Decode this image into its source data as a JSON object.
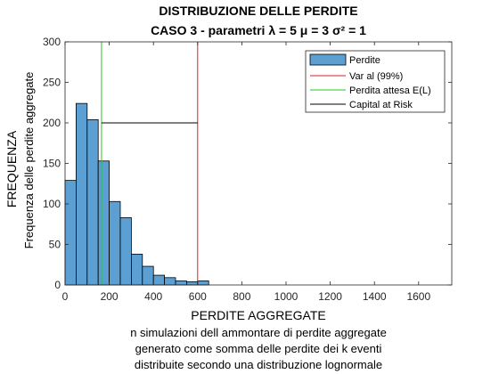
{
  "chart_data": {
    "type": "bar",
    "title_line1": "DISTRIBUZIONE DELLE PERDITE",
    "title_line2": "CASO 3 - parametri λ = 5 μ = 3 σ² = 1",
    "ylabel_main": "FREQUENZA",
    "ylabel_sub": "Frequenza delle perdite aggregate",
    "xlabel_main": "PERDITE AGGREGATE",
    "xlabel_sub": [
      "n simulazioni dell ammontare di perdite aggregate",
      "generato come somma delle perdite dei k eventi",
      "distribuite secondo una distribuzione lognormale"
    ],
    "xlim": [
      0,
      1750
    ],
    "ylim": [
      0,
      300
    ],
    "xticks": [
      "0",
      "200",
      "400",
      "600",
      "800",
      "1000",
      "1200",
      "1400",
      "1600"
    ],
    "yticks": [
      "0",
      "50",
      "100",
      "150",
      "200",
      "250",
      "300"
    ],
    "grid": false,
    "legend_position": "top-right",
    "histogram": {
      "name": "Perdite",
      "color": "#5b9fd3",
      "bin_edges": [
        0,
        50,
        100,
        150,
        200,
        250,
        300,
        350,
        400,
        450,
        500,
        550,
        600,
        650
      ],
      "counts": [
        129,
        224,
        204,
        153,
        103,
        83,
        38,
        23,
        12,
        9,
        5,
        4,
        5
      ]
    },
    "lines": [
      {
        "name": "Var al (99%)",
        "color": "#d92020",
        "type": "vertical",
        "x": 600
      },
      {
        "name": "Perdita attesa E(L)",
        "color": "#22cc22",
        "type": "vertical",
        "x": 165
      },
      {
        "name": "Capital at Risk",
        "color": "#000000",
        "type": "horizontal",
        "y": 200,
        "x_from": 165,
        "x_to": 600
      }
    ]
  }
}
